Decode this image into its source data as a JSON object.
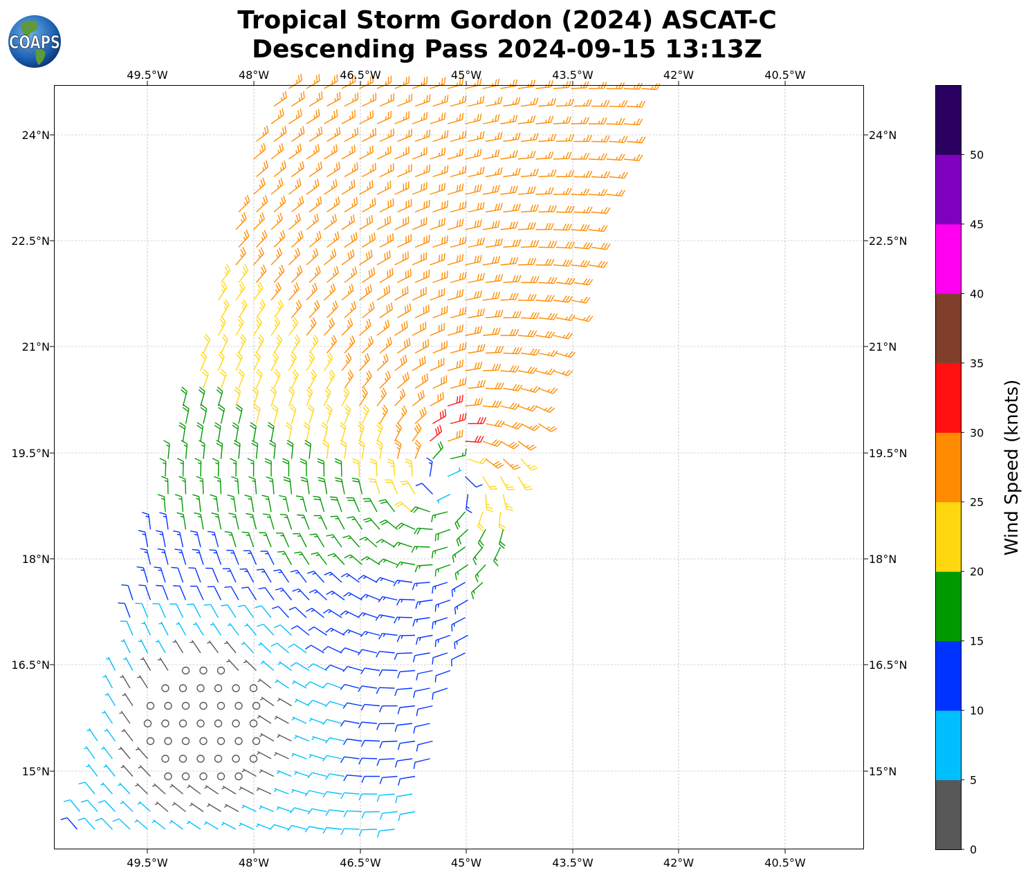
{
  "title": {
    "line1": "Tropical Storm Gordon (2024) ASCAT-C",
    "line2": "Descending Pass 2024-09-15 13:13Z"
  },
  "logo": {
    "text": "COAPS"
  },
  "chart_data": {
    "type": "wind-barb-map",
    "projection": "lat-lon",
    "grid": true,
    "xlim": [
      "50.8°W",
      "39.4°W"
    ],
    "ylim": [
      "13.9°N",
      "24.7°N"
    ],
    "x_ticks": [
      "49.5°W",
      "48°W",
      "46.5°W",
      "45°W",
      "43.5°W",
      "42°W",
      "40.5°W"
    ],
    "y_ticks": [
      "24°N",
      "22.5°N",
      "21°N",
      "19.5°N",
      "18°N",
      "16.5°N",
      "15°N"
    ],
    "colorbar": {
      "label": "Wind Speed (knots)",
      "range": [
        0,
        55
      ],
      "ticks": [
        "0",
        "5",
        "10",
        "15",
        "20",
        "25",
        "30",
        "35",
        "40",
        "45",
        "50"
      ],
      "bins": [
        {
          "min": 0,
          "max": 5,
          "color": "#585858"
        },
        {
          "min": 5,
          "max": 10,
          "color": "#00bfff"
        },
        {
          "min": 10,
          "max": 15,
          "color": "#0033ff"
        },
        {
          "min": 15,
          "max": 20,
          "color": "#009900"
        },
        {
          "min": 20,
          "max": 25,
          "color": "#ffd710"
        },
        {
          "min": 25,
          "max": 30,
          "color": "#ff8c00"
        },
        {
          "min": 30,
          "max": 35,
          "color": "#ff1111"
        },
        {
          "min": 35,
          "max": 40,
          "color": "#7f3f2a"
        },
        {
          "min": 40,
          "max": 45,
          "color": "#ff00f0"
        },
        {
          "min": 45,
          "max": 50,
          "color": "#8000c0"
        },
        {
          "min": 50,
          "max": 55,
          "color": "#2a0060"
        }
      ]
    }
  }
}
